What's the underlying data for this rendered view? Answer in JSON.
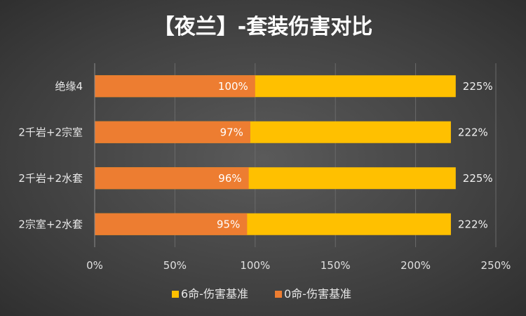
{
  "chart_data": {
    "type": "bar",
    "orientation": "horizontal",
    "title": "【夜兰】-套装伤害对比",
    "categories": [
      "绝缘4",
      "2千岩+2宗室",
      "2千岩+2水套",
      "2宗室+2水套"
    ],
    "series": [
      {
        "name": "6命-伤害基准",
        "values": [
          225,
          222,
          225,
          222
        ],
        "labels": [
          "225%",
          "222%",
          "225%",
          "222%"
        ],
        "color": "#FFC000"
      },
      {
        "name": "0命-伤害基准",
        "values": [
          100,
          97,
          96,
          95
        ],
        "labels": [
          "100%",
          "97%",
          "96%",
          "95%"
        ],
        "color": "#ED7D31"
      }
    ],
    "xlim": [
      0,
      250
    ],
    "xticks": [
      "0%",
      "50%",
      "100%",
      "150%",
      "200%",
      "250%"
    ],
    "grid": true,
    "legend_position": "bottom"
  }
}
